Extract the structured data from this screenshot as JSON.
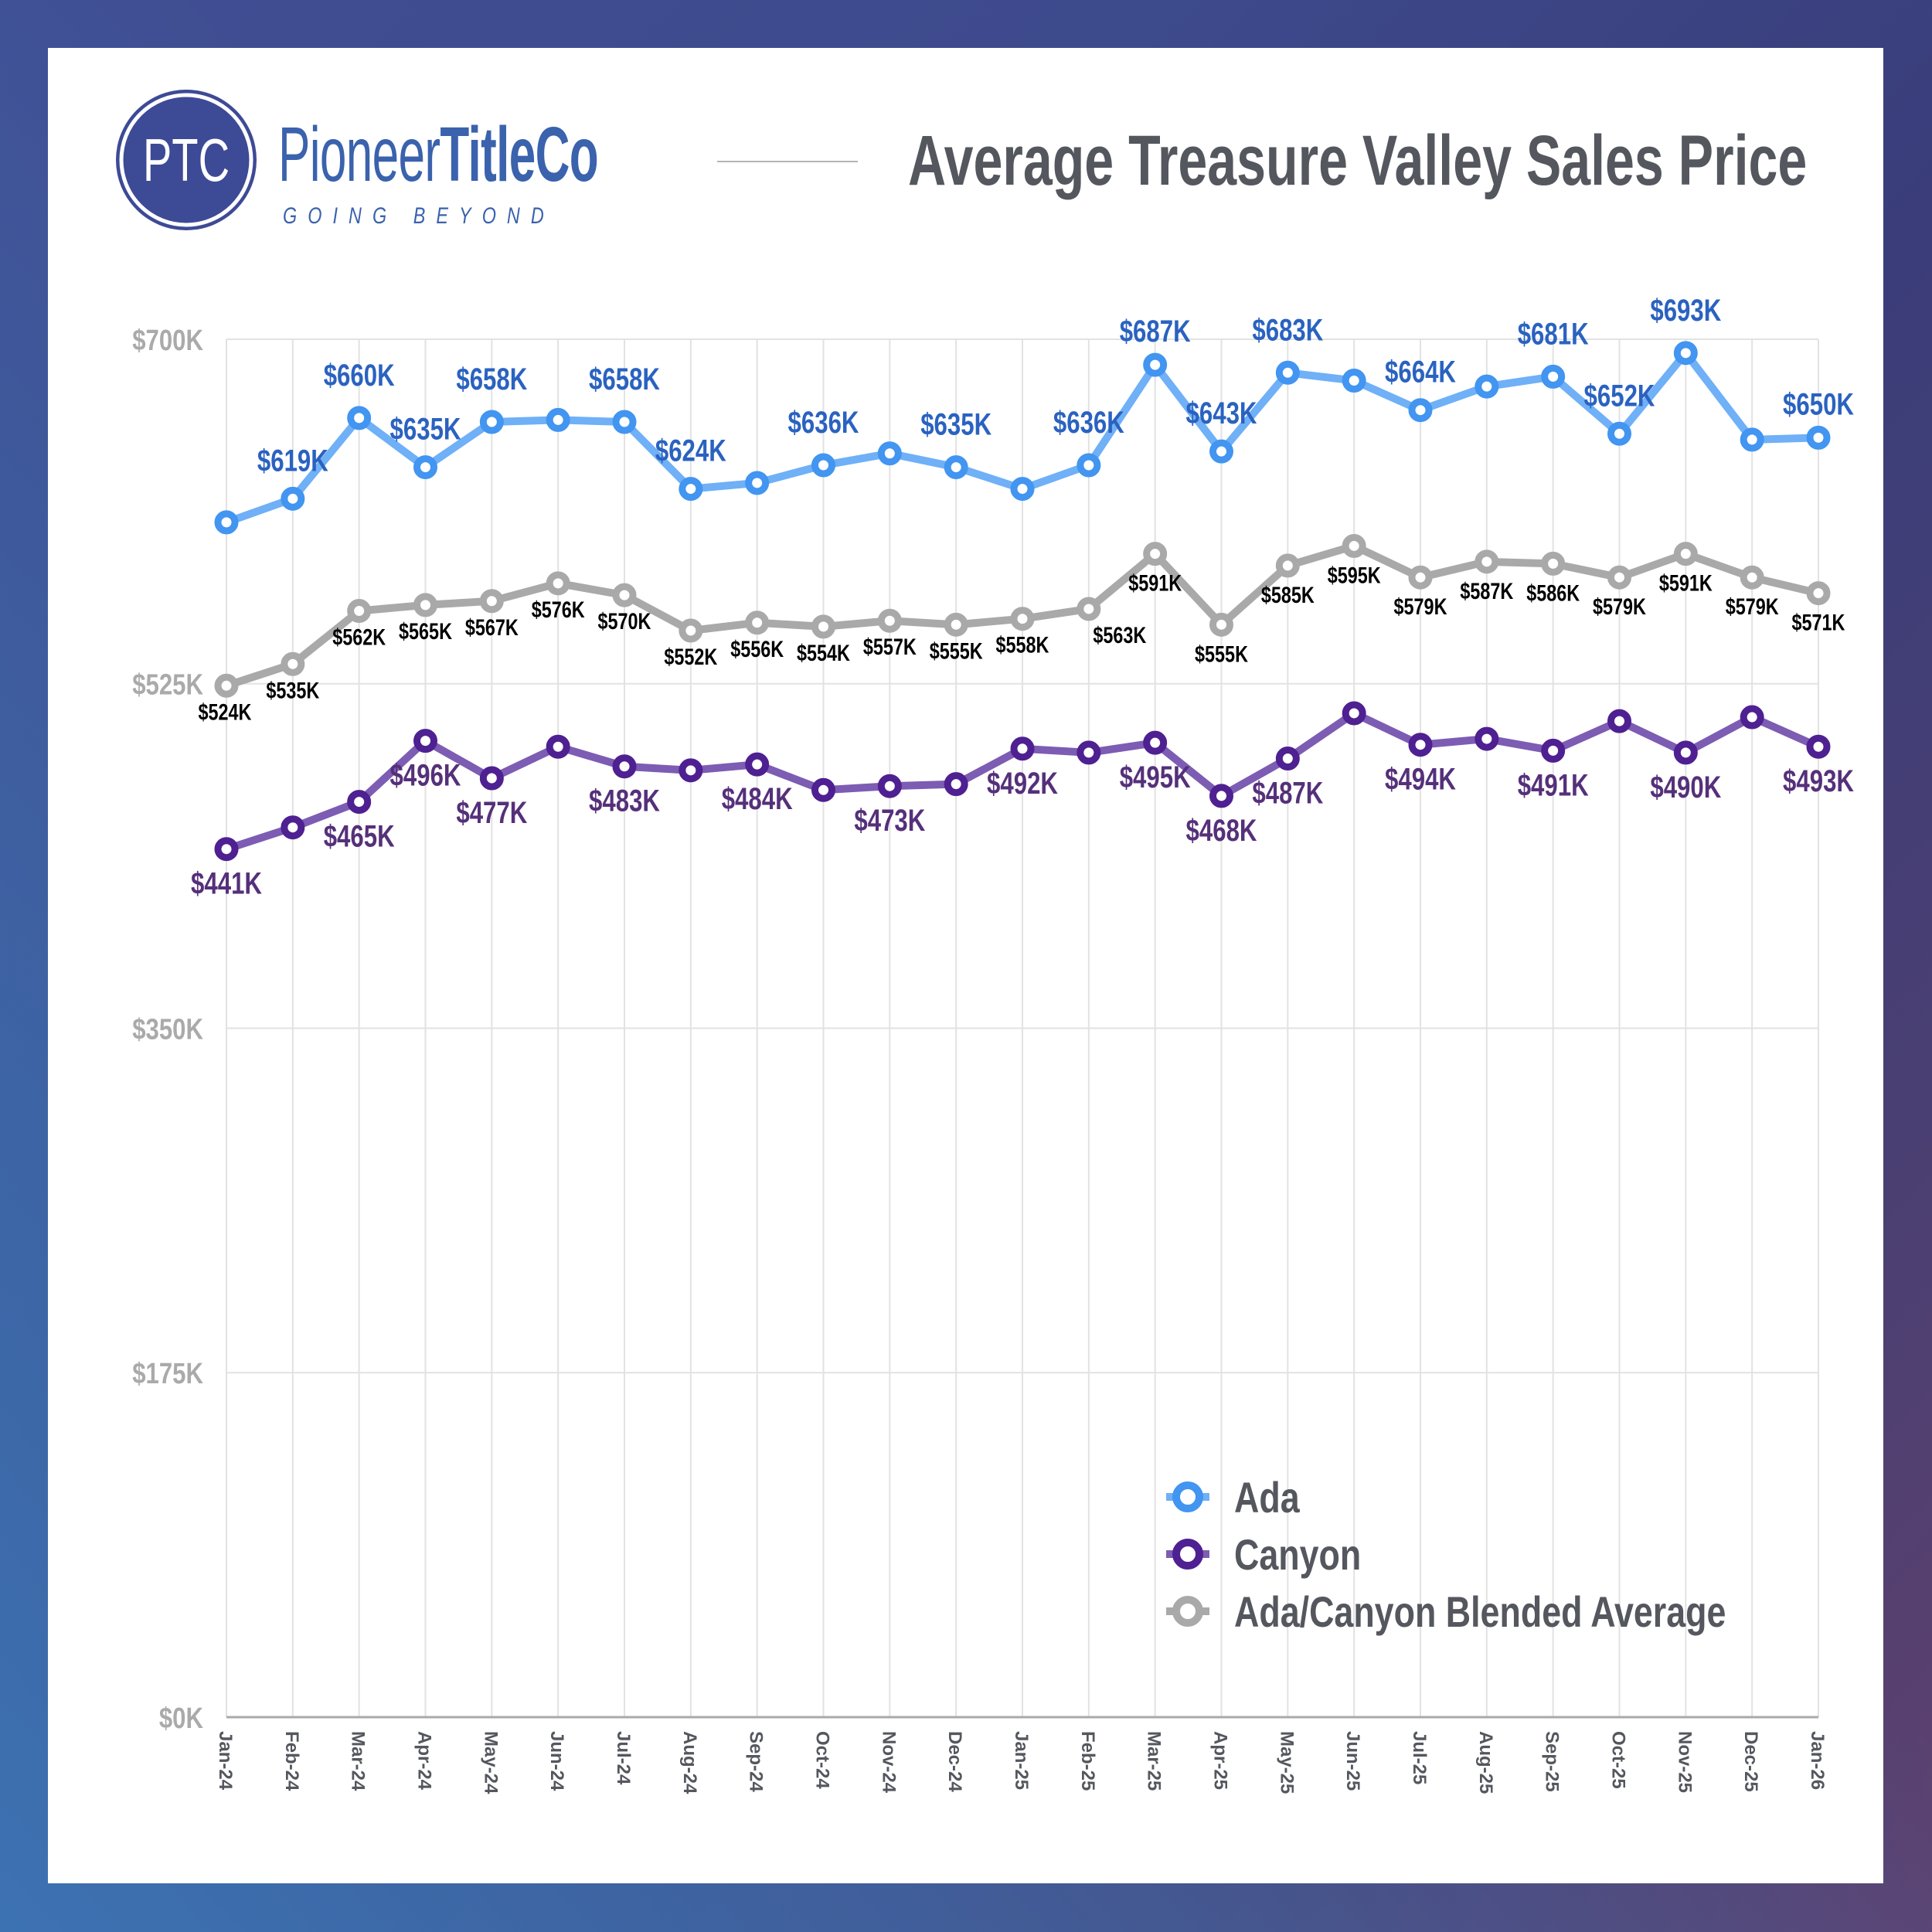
{
  "header": {
    "logo_initials": "PTC",
    "brand_regular": "Pioneer",
    "brand_bold": "TitleCo",
    "tagline": "GOING BEYOND",
    "brand_color": "#3d4a96"
  },
  "chart_data": {
    "type": "line",
    "title": "Average Treasure Valley Sales Price",
    "xlabel": "",
    "ylabel": "",
    "ylim": [
      0,
      700
    ],
    "yunit": "K USD",
    "yticks": [
      0,
      175,
      350,
      525,
      700
    ],
    "ytick_labels": [
      "$0K",
      "$175K",
      "$350K",
      "$525K",
      "$700K"
    ],
    "grid": true,
    "legend_position": "bottom-right",
    "categories": [
      "Jan-24",
      "Feb-24",
      "Mar-24",
      "Apr-24",
      "May-24",
      "Jun-24",
      "Jul-24",
      "Aug-24",
      "Sep-24",
      "Oct-24",
      "Nov-24",
      "Dec-24",
      "Jan-25",
      "Feb-25",
      "Mar-25",
      "Apr-25",
      "May-25",
      "Jun-25",
      "Jul-25",
      "Aug-25",
      "Sep-25",
      "Oct-25",
      "Nov-25",
      "Dec-25",
      "Jan-26"
    ],
    "series": [
      {
        "name": "Ada",
        "color": "#4295f0",
        "line_color": "#6fb0f7",
        "label_color": "#2a62c0",
        "values": [
          607,
          619,
          660,
          635,
          658,
          659,
          658,
          624,
          627,
          636,
          642,
          635,
          624,
          636,
          687,
          643,
          683,
          679,
          664,
          676,
          681,
          652,
          693,
          649,
          650
        ],
        "labels": [
          null,
          "$619K",
          "$660K",
          "$635K",
          "$658K",
          null,
          "$658K",
          "$624K",
          null,
          "$636K",
          null,
          "$635K",
          null,
          "$636K",
          "$687K",
          "$643K",
          "$683K",
          null,
          "$664K",
          null,
          "$681K",
          "$652K",
          "$693K",
          null,
          "$650K"
        ]
      },
      {
        "name": "Canyon",
        "color": "#4e2091",
        "line_color": "#7d5cb3",
        "label_color": "#55307a",
        "values": [
          441,
          452,
          465,
          496,
          477,
          493,
          483,
          481,
          484,
          471,
          473,
          474,
          492,
          490,
          495,
          468,
          487,
          510,
          494,
          497,
          491,
          506,
          490,
          508,
          493
        ],
        "labels": [
          "$441K",
          null,
          "$465K",
          "$496K",
          "$477K",
          null,
          "$483K",
          null,
          "$484K",
          null,
          "$473K",
          null,
          "$492K",
          null,
          "$495K",
          "$468K",
          "$487K",
          null,
          "$494K",
          null,
          "$491K",
          null,
          "$490K",
          null,
          "$493K"
        ]
      },
      {
        "name": "Ada/Canyon Blended Average",
        "color": "#a8a9a8",
        "line_color": "#a8a9a8",
        "label_color": "#000000",
        "values": [
          524,
          535,
          562,
          565,
          567,
          576,
          570,
          552,
          556,
          554,
          557,
          555,
          558,
          563,
          591,
          555,
          585,
          595,
          579,
          587,
          586,
          579,
          591,
          579,
          571
        ],
        "labels": [
          "$524K",
          "$535K",
          "$562K",
          "$565K",
          "$567K",
          "$576K",
          "$570K",
          "$552K",
          "$556K",
          "$554K",
          "$557K",
          "$555K",
          "$558K",
          "$563K",
          "$591K",
          "$555K",
          "$585K",
          "$595K",
          "$579K",
          "$587K",
          "$586K",
          "$579K",
          "$591K",
          "$579K",
          "$571K"
        ]
      }
    ]
  },
  "colors": {
    "title": "#54575e",
    "grid": "#e2e2e2",
    "axis": "#aaaaaa"
  }
}
